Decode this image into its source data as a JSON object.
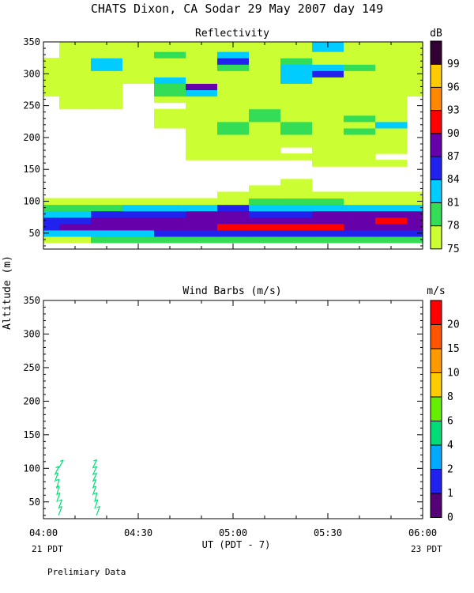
{
  "header": {
    "title": "CHATS Dixon, CA  Sodar  29 May 2007  day 149"
  },
  "shared_axes": {
    "ylabel": "Altitude (m)",
    "xlabel": "UT  (PDT - 7)",
    "x_ticks": [
      "04:00",
      "04:30",
      "05:00",
      "05:30",
      "06:00"
    ],
    "x_sub_left": "21 PDT",
    "x_sub_right": "23 PDT"
  },
  "footer": {
    "note": "Prelimiary Data"
  },
  "chart_data": [
    {
      "type": "heatmap",
      "title": "Reflectivity",
      "colorbar": {
        "unit": "dB",
        "labels": [
          "75",
          "78",
          "81",
          "84",
          "87",
          "90",
          "93",
          "96",
          "99"
        ],
        "levels": [
          75,
          78,
          81,
          84,
          87,
          90,
          93,
          96,
          99,
          102
        ],
        "colors": [
          "#ccff33",
          "#33dd55",
          "#00ccff",
          "#2222ee",
          "#6600aa",
          "#ff0000",
          "#ff8800",
          "#ffcc00",
          "#330033"
        ]
      },
      "x_range_hours": [
        4.0,
        6.0
      ],
      "ylim": [
        25,
        350
      ],
      "y_ticks": [
        "50",
        "100",
        "150",
        "200",
        "250",
        "300",
        "350"
      ],
      "x": [
        4.0,
        4.1667,
        4.3333,
        4.5,
        4.6667,
        4.8333,
        5.0,
        5.1667,
        5.3333,
        5.5,
        5.6667,
        5.8333,
        6.0
      ],
      "y": [
        40,
        50,
        60,
        70,
        80,
        90,
        100,
        110,
        120,
        130,
        140,
        150,
        160,
        170,
        180,
        190,
        200,
        210,
        220,
        230,
        240,
        250,
        260,
        270,
        280,
        290,
        300,
        310,
        320,
        330,
        340,
        350
      ],
      "z": [
        [
          76,
          77,
          78,
          79,
          78,
          79,
          78,
          79,
          79,
          78,
          79,
          78,
          79
        ],
        [
          81,
          82,
          83,
          83,
          84,
          85,
          85,
          85,
          84,
          85,
          84,
          85,
          84
        ],
        [
          86,
          87,
          87,
          88,
          88,
          89,
          91,
          90,
          91,
          92,
          89,
          89,
          88
        ],
        [
          85,
          86,
          87,
          88,
          88,
          88,
          88,
          88,
          89,
          88,
          88,
          91,
          88
        ],
        [
          82,
          83,
          84,
          85,
          86,
          87,
          87,
          86,
          86,
          87,
          87,
          87,
          87
        ],
        [
          79,
          80,
          80,
          81,
          82,
          83,
          84,
          83,
          82,
          83,
          82,
          82,
          82
        ],
        [
          76,
          76,
          76,
          76,
          76,
          77,
          77,
          78,
          78,
          78,
          77,
          77,
          77
        ],
        [
          72,
          72,
          72,
          72,
          72,
          73,
          76,
          76,
          76,
          76,
          75,
          76,
          75
        ],
        [
          70,
          70,
          70,
          70,
          71,
          70,
          70,
          76,
          75,
          74,
          70,
          74,
          70
        ],
        [
          70,
          70,
          70,
          70,
          70,
          70,
          70,
          70,
          75,
          70,
          70,
          70,
          70
        ],
        [
          70,
          70,
          70,
          70,
          70,
          70,
          70,
          70,
          70,
          70,
          70,
          70,
          70
        ],
        [
          70,
          70,
          70,
          70,
          70,
          70,
          70,
          70,
          70,
          70,
          70,
          70,
          70
        ],
        [
          70,
          70,
          70,
          70,
          70,
          70,
          70,
          70,
          70,
          75,
          75,
          75,
          70
        ],
        [
          70,
          70,
          70,
          70,
          70,
          76,
          75,
          76,
          76,
          75,
          76,
          70,
          70
        ],
        [
          70,
          70,
          70,
          70,
          70,
          75,
          75,
          76,
          70,
          76,
          76,
          75,
          70
        ],
        [
          70,
          70,
          70,
          70,
          70,
          76,
          76,
          76,
          76,
          76,
          76,
          75,
          70
        ],
        [
          70,
          70,
          70,
          70,
          70,
          75,
          77,
          77,
          76,
          75,
          76,
          76,
          70
        ],
        [
          70,
          70,
          70,
          70,
          70,
          76,
          80,
          77,
          78,
          76,
          78,
          76,
          70
        ],
        [
          70,
          70,
          70,
          70,
          75,
          76,
          78,
          77,
          79,
          76,
          77,
          81,
          70
        ],
        [
          70,
          70,
          70,
          70,
          76,
          76,
          76,
          78,
          77,
          77,
          78,
          76,
          70
        ],
        [
          70,
          70,
          70,
          70,
          75,
          76,
          77,
          78,
          76,
          76,
          77,
          75,
          70
        ],
        [
          70,
          75,
          75,
          70,
          70,
          75,
          75,
          76,
          76,
          75,
          75,
          75,
          70
        ],
        [
          70,
          76,
          75,
          70,
          75,
          76,
          76,
          75,
          76,
          76,
          75,
          75,
          70
        ],
        [
          75,
          76,
          76,
          70,
          78,
          83,
          76,
          76,
          76,
          75,
          76,
          75,
          75
        ],
        [
          76,
          76,
          76,
          70,
          80,
          87,
          75,
          76,
          76,
          76,
          76,
          75,
          76
        ],
        [
          75,
          76,
          76,
          75,
          81,
          76,
          77,
          76,
          81,
          77,
          76,
          75,
          76
        ],
        [
          76,
          77,
          77,
          76,
          76,
          76,
          76,
          77,
          82,
          84,
          77,
          76,
          76
        ],
        [
          76,
          77,
          81,
          76,
          76,
          76,
          78,
          76,
          81,
          81,
          78,
          77,
          77
        ],
        [
          75,
          77,
          81,
          77,
          76,
          76,
          84,
          77,
          78,
          77,
          76,
          76,
          77
        ],
        [
          70,
          76,
          76,
          77,
          78,
          77,
          81,
          77,
          76,
          76,
          76,
          77,
          76
        ],
        [
          70,
          75,
          77,
          76,
          77,
          77,
          77,
          76,
          77,
          81,
          76,
          76,
          76
        ],
        [
          70,
          76,
          77,
          77,
          77,
          77,
          76,
          77,
          77,
          81,
          77,
          77,
          76
        ]
      ]
    },
    {
      "type": "scatter",
      "title": "Wind Barbs (m/s)",
      "colorbar": {
        "unit": "m/s",
        "labels": [
          "0",
          "1",
          "2",
          "4",
          "6",
          "8",
          "10",
          "15",
          "20"
        ],
        "colors": [
          "#550077",
          "#2222ee",
          "#00aaff",
          "#00dd77",
          "#66ee00",
          "#ffcc00",
          "#ff9900",
          "#ff5500",
          "#ff0000"
        ]
      },
      "x_range_hours": [
        4.0,
        6.0
      ],
      "ylim": [
        25,
        350
      ],
      "y_ticks": [
        "50",
        "100",
        "150",
        "200",
        "250",
        "300",
        "350"
      ],
      "barbs": [
        {
          "x": 4.08,
          "y": 30,
          "speed": 4,
          "dir": 200
        },
        {
          "x": 4.08,
          "y": 40,
          "speed": 4,
          "dir": 200
        },
        {
          "x": 4.07,
          "y": 50,
          "speed": 4,
          "dir": 200
        },
        {
          "x": 4.07,
          "y": 60,
          "speed": 4,
          "dir": 195
        },
        {
          "x": 4.07,
          "y": 70,
          "speed": 4,
          "dir": 195
        },
        {
          "x": 4.06,
          "y": 80,
          "speed": 4,
          "dir": 200
        },
        {
          "x": 4.06,
          "y": 90,
          "speed": 4,
          "dir": 205
        },
        {
          "x": 4.08,
          "y": 100,
          "speed": 4,
          "dir": 210
        },
        {
          "x": 4.28,
          "y": 30,
          "speed": 4,
          "dir": 200
        },
        {
          "x": 4.27,
          "y": 40,
          "speed": 4,
          "dir": 200
        },
        {
          "x": 4.27,
          "y": 50,
          "speed": 4,
          "dir": 195
        },
        {
          "x": 4.26,
          "y": 60,
          "speed": 4,
          "dir": 200
        },
        {
          "x": 4.26,
          "y": 70,
          "speed": 4,
          "dir": 200
        },
        {
          "x": 4.26,
          "y": 80,
          "speed": 4,
          "dir": 205
        },
        {
          "x": 4.26,
          "y": 90,
          "speed": 4,
          "dir": 205
        },
        {
          "x": 4.26,
          "y": 100,
          "speed": 4,
          "dir": 205
        }
      ]
    }
  ]
}
